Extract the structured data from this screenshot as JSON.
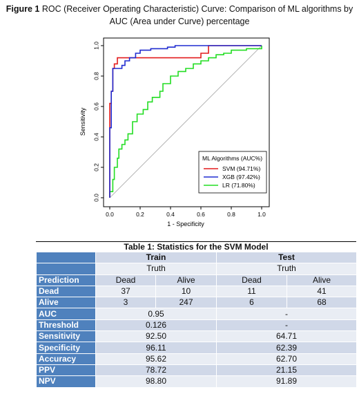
{
  "figure": {
    "label": "Figure 1",
    "title": "ROC (Receiver Operating Characteristic) Curve: Comparison of ML algorithms by AUC (Area under Curve) percentage"
  },
  "chart_data": {
    "type": "line",
    "xlabel": "1 - Specificity",
    "ylabel": "Sensitivity",
    "xlim": [
      0,
      1
    ],
    "ylim": [
      0,
      1
    ],
    "xticks": [
      "0.0",
      "0.2",
      "0.4",
      "0.6",
      "0.8",
      "1.0"
    ],
    "yticks": [
      "0.0",
      "0.2",
      "0.4",
      "0.6",
      "0.8",
      "1.0"
    ],
    "reference_line": "diagonal",
    "legend": {
      "title": "ML Algorithms (AUC%)",
      "placement": "bottom-right"
    },
    "series": [
      {
        "name": "SVM (94.71%)",
        "color": "#e31a1c",
        "x": [
          0,
          0,
          0.01,
          0.01,
          0.02,
          0.02,
          0.03,
          0.03,
          0.05,
          0.05,
          0.08,
          0.08,
          0.6,
          0.6,
          0.65,
          0.65,
          1.0
        ],
        "y": [
          0,
          0.62,
          0.62,
          0.7,
          0.7,
          0.85,
          0.85,
          0.88,
          0.88,
          0.92,
          0.92,
          0.92,
          0.92,
          0.95,
          0.95,
          1.0,
          1.0
        ]
      },
      {
        "name": "XGB (97.42%)",
        "color": "#1f2bd0",
        "x": [
          0,
          0,
          0.01,
          0.01,
          0.02,
          0.02,
          0.08,
          0.08,
          0.1,
          0.1,
          0.13,
          0.13,
          0.17,
          0.17,
          0.2,
          0.2,
          0.27,
          0.27,
          0.38,
          0.38,
          0.43,
          0.43,
          1.0
        ],
        "y": [
          0,
          0.46,
          0.46,
          0.7,
          0.7,
          0.85,
          0.85,
          0.87,
          0.87,
          0.9,
          0.9,
          0.92,
          0.92,
          0.95,
          0.95,
          0.97,
          0.97,
          0.98,
          0.98,
          0.99,
          0.99,
          1.0,
          1.0
        ]
      },
      {
        "name": "LR (71.80%)",
        "color": "#22dd22",
        "x": [
          0,
          0,
          0.02,
          0.02,
          0.03,
          0.03,
          0.05,
          0.05,
          0.06,
          0.06,
          0.08,
          0.08,
          0.1,
          0.1,
          0.12,
          0.12,
          0.15,
          0.15,
          0.18,
          0.18,
          0.22,
          0.22,
          0.25,
          0.25,
          0.28,
          0.28,
          0.33,
          0.33,
          0.35,
          0.35,
          0.4,
          0.4,
          0.45,
          0.45,
          0.5,
          0.5,
          0.55,
          0.55,
          0.6,
          0.6,
          0.65,
          0.65,
          0.7,
          0.7,
          0.75,
          0.75,
          0.8,
          0.8,
          0.9,
          0.9,
          1.0,
          1.0
        ],
        "y": [
          0,
          0.04,
          0.04,
          0.12,
          0.12,
          0.2,
          0.2,
          0.26,
          0.26,
          0.32,
          0.32,
          0.35,
          0.35,
          0.38,
          0.38,
          0.42,
          0.42,
          0.5,
          0.5,
          0.55,
          0.55,
          0.58,
          0.58,
          0.63,
          0.63,
          0.66,
          0.66,
          0.7,
          0.7,
          0.75,
          0.75,
          0.8,
          0.8,
          0.83,
          0.83,
          0.85,
          0.85,
          0.88,
          0.88,
          0.9,
          0.9,
          0.92,
          0.92,
          0.94,
          0.94,
          0.95,
          0.95,
          0.97,
          0.97,
          0.98,
          0.98,
          1.0
        ]
      }
    ]
  },
  "table": {
    "title": "Table 1: Statistics for the SVM Model",
    "groups": [
      "Train",
      "Test"
    ],
    "truth_label": "Truth",
    "prediction_label": "Prediction",
    "classes": [
      "Dead",
      "Alive"
    ],
    "confusion": [
      {
        "label": "Dead",
        "train": [
          "37",
          "10"
        ],
        "test": [
          "11",
          "41"
        ]
      },
      {
        "label": "Alive",
        "train": [
          "3",
          "247"
        ],
        "test": [
          "6",
          "68"
        ]
      }
    ],
    "metrics": [
      {
        "label": "AUC",
        "train": "0.95",
        "test": "-"
      },
      {
        "label": "Threshold",
        "train": "0.126",
        "test": "-"
      },
      {
        "label": "Sensitivity",
        "train": "92.50",
        "test": "64.71"
      },
      {
        "label": "Specificity",
        "train": "96.11",
        "test": "62.39"
      },
      {
        "label": "Accuracy",
        "train": "95.62",
        "test": "62.70"
      },
      {
        "label": "PPV",
        "train": "78.72",
        "test": "21.15"
      },
      {
        "label": "NPV",
        "train": "98.80",
        "test": "91.89"
      }
    ]
  }
}
